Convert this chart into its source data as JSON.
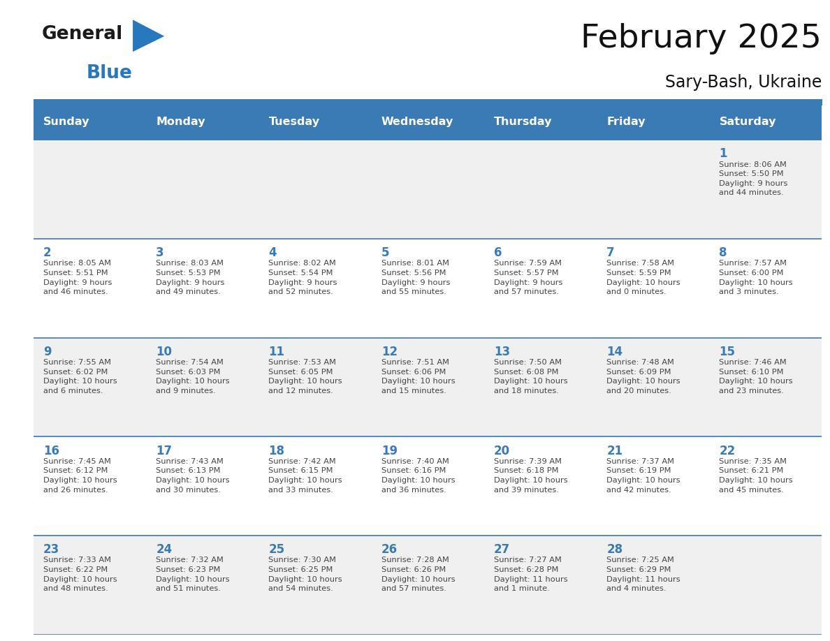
{
  "title": "February 2025",
  "subtitle": "Sary-Bash, Ukraine",
  "header_bg": "#3a7ab5",
  "header_text_color": "#ffffff",
  "day_names": [
    "Sunday",
    "Monday",
    "Tuesday",
    "Wednesday",
    "Thursday",
    "Friday",
    "Saturday"
  ],
  "row_bg_odd": "#f0f0f0",
  "row_bg_even": "#ffffff",
  "cell_border_color": "#3a7ab5",
  "date_color": "#3a7ab5",
  "text_color": "#444444",
  "logo_general_color": "#1a1a1a",
  "logo_blue_color": "#2878be",
  "calendar": [
    [
      null,
      null,
      null,
      null,
      null,
      null,
      {
        "day": 1,
        "sunrise": "8:06 AM",
        "sunset": "5:50 PM",
        "daylight": "9 hours\nand 44 minutes."
      }
    ],
    [
      {
        "day": 2,
        "sunrise": "8:05 AM",
        "sunset": "5:51 PM",
        "daylight": "9 hours\nand 46 minutes."
      },
      {
        "day": 3,
        "sunrise": "8:03 AM",
        "sunset": "5:53 PM",
        "daylight": "9 hours\nand 49 minutes."
      },
      {
        "day": 4,
        "sunrise": "8:02 AM",
        "sunset": "5:54 PM",
        "daylight": "9 hours\nand 52 minutes."
      },
      {
        "day": 5,
        "sunrise": "8:01 AM",
        "sunset": "5:56 PM",
        "daylight": "9 hours\nand 55 minutes."
      },
      {
        "day": 6,
        "sunrise": "7:59 AM",
        "sunset": "5:57 PM",
        "daylight": "9 hours\nand 57 minutes."
      },
      {
        "day": 7,
        "sunrise": "7:58 AM",
        "sunset": "5:59 PM",
        "daylight": "10 hours\nand 0 minutes."
      },
      {
        "day": 8,
        "sunrise": "7:57 AM",
        "sunset": "6:00 PM",
        "daylight": "10 hours\nand 3 minutes."
      }
    ],
    [
      {
        "day": 9,
        "sunrise": "7:55 AM",
        "sunset": "6:02 PM",
        "daylight": "10 hours\nand 6 minutes."
      },
      {
        "day": 10,
        "sunrise": "7:54 AM",
        "sunset": "6:03 PM",
        "daylight": "10 hours\nand 9 minutes."
      },
      {
        "day": 11,
        "sunrise": "7:53 AM",
        "sunset": "6:05 PM",
        "daylight": "10 hours\nand 12 minutes."
      },
      {
        "day": 12,
        "sunrise": "7:51 AM",
        "sunset": "6:06 PM",
        "daylight": "10 hours\nand 15 minutes."
      },
      {
        "day": 13,
        "sunrise": "7:50 AM",
        "sunset": "6:08 PM",
        "daylight": "10 hours\nand 18 minutes."
      },
      {
        "day": 14,
        "sunrise": "7:48 AM",
        "sunset": "6:09 PM",
        "daylight": "10 hours\nand 20 minutes."
      },
      {
        "day": 15,
        "sunrise": "7:46 AM",
        "sunset": "6:10 PM",
        "daylight": "10 hours\nand 23 minutes."
      }
    ],
    [
      {
        "day": 16,
        "sunrise": "7:45 AM",
        "sunset": "6:12 PM",
        "daylight": "10 hours\nand 26 minutes."
      },
      {
        "day": 17,
        "sunrise": "7:43 AM",
        "sunset": "6:13 PM",
        "daylight": "10 hours\nand 30 minutes."
      },
      {
        "day": 18,
        "sunrise": "7:42 AM",
        "sunset": "6:15 PM",
        "daylight": "10 hours\nand 33 minutes."
      },
      {
        "day": 19,
        "sunrise": "7:40 AM",
        "sunset": "6:16 PM",
        "daylight": "10 hours\nand 36 minutes."
      },
      {
        "day": 20,
        "sunrise": "7:39 AM",
        "sunset": "6:18 PM",
        "daylight": "10 hours\nand 39 minutes."
      },
      {
        "day": 21,
        "sunrise": "7:37 AM",
        "sunset": "6:19 PM",
        "daylight": "10 hours\nand 42 minutes."
      },
      {
        "day": 22,
        "sunrise": "7:35 AM",
        "sunset": "6:21 PM",
        "daylight": "10 hours\nand 45 minutes."
      }
    ],
    [
      {
        "day": 23,
        "sunrise": "7:33 AM",
        "sunset": "6:22 PM",
        "daylight": "10 hours\nand 48 minutes."
      },
      {
        "day": 24,
        "sunrise": "7:32 AM",
        "sunset": "6:23 PM",
        "daylight": "10 hours\nand 51 minutes."
      },
      {
        "day": 25,
        "sunrise": "7:30 AM",
        "sunset": "6:25 PM",
        "daylight": "10 hours\nand 54 minutes."
      },
      {
        "day": 26,
        "sunrise": "7:28 AM",
        "sunset": "6:26 PM",
        "daylight": "10 hours\nand 57 minutes."
      },
      {
        "day": 27,
        "sunrise": "7:27 AM",
        "sunset": "6:28 PM",
        "daylight": "11 hours\nand 1 minute."
      },
      {
        "day": 28,
        "sunrise": "7:25 AM",
        "sunset": "6:29 PM",
        "daylight": "11 hours\nand 4 minutes."
      },
      null
    ]
  ]
}
